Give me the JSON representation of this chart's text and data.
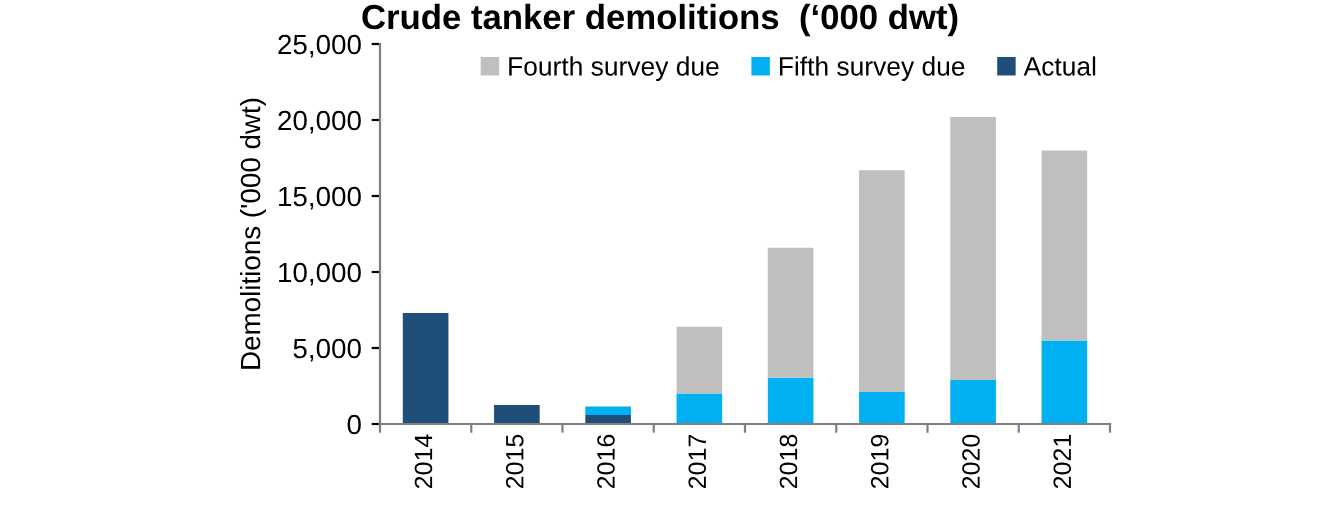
{
  "chart_data": {
    "type": "bar",
    "title": "Crude tanker demolitions  (‘000 dwt)",
    "ylabel": "Demolitions ('000 dwt)",
    "categories": [
      "2014",
      "2015",
      "2016",
      "2017",
      "2018",
      "2019",
      "2020",
      "2021"
    ],
    "stacked": true,
    "series": [
      {
        "name": "Actual",
        "color": "#1f4e79",
        "values": [
          7300,
          1250,
          600,
          null,
          null,
          null,
          null,
          null
        ]
      },
      {
        "name": "Fifth survey due",
        "color": "#00b0f0",
        "values": [
          null,
          null,
          550,
          2000,
          3050,
          2100,
          2900,
          5500
        ]
      },
      {
        "name": "Fourth survey due",
        "color": "#bfbfbf",
        "values": [
          null,
          null,
          null,
          4400,
          8550,
          14600,
          17300,
          12500
        ]
      }
    ],
    "ylim": [
      0,
      25000
    ],
    "yticks": [
      {
        "value": 0,
        "label": "0"
      },
      {
        "value": 5000,
        "label": "5,000"
      },
      {
        "value": 10000,
        "label": "10,000"
      },
      {
        "value": 15000,
        "label": "15,000"
      },
      {
        "value": 20000,
        "label": "20,000"
      },
      {
        "value": 25000,
        "label": "25,000"
      }
    ],
    "grid": false,
    "legend": "top"
  }
}
